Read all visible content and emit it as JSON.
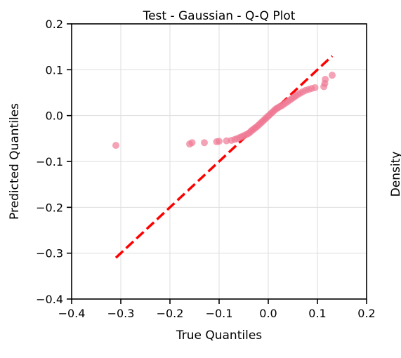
{
  "chart_data": {
    "type": "scatter",
    "title": "Test - Gaussian - Q-Q Plot",
    "xlabel": "True Quantiles",
    "ylabel": "Predicted Quantiles",
    "side_label": "Density",
    "xlim": [
      -0.4,
      0.2
    ],
    "ylim": [
      -0.4,
      0.2
    ],
    "xticks": [
      "−0.4",
      "−0.3",
      "−0.2",
      "−0.1",
      "0.0",
      "0.1",
      "0.2"
    ],
    "yticks": [
      "−0.4",
      "−0.3",
      "−0.2",
      "−0.1",
      "0.0",
      "0.1",
      "0.2"
    ],
    "xtick_values": [
      -0.4,
      -0.3,
      -0.2,
      -0.1,
      0.0,
      0.1,
      0.2
    ],
    "ytick_values": [
      -0.4,
      -0.3,
      -0.2,
      -0.1,
      0.0,
      0.1,
      0.2
    ],
    "grid": true,
    "point_color": "#f07a95",
    "line_color": "#ff0000",
    "reference_line": {
      "x": [
        -0.31,
        0.13
      ],
      "y": [
        -0.31,
        0.13
      ],
      "style": "dashed"
    },
    "points": [
      {
        "x": -0.31,
        "y": -0.065
      },
      {
        "x": -0.16,
        "y": -0.062
      },
      {
        "x": -0.155,
        "y": -0.059
      },
      {
        "x": -0.13,
        "y": -0.059
      },
      {
        "x": -0.105,
        "y": -0.057
      },
      {
        "x": -0.1,
        "y": -0.056
      },
      {
        "x": -0.085,
        "y": -0.055
      },
      {
        "x": -0.075,
        "y": -0.054
      },
      {
        "x": -0.068,
        "y": -0.052
      },
      {
        "x": -0.063,
        "y": -0.05
      },
      {
        "x": -0.058,
        "y": -0.048
      },
      {
        "x": -0.054,
        "y": -0.046
      },
      {
        "x": -0.05,
        "y": -0.044
      },
      {
        "x": -0.046,
        "y": -0.042
      },
      {
        "x": -0.042,
        "y": -0.04
      },
      {
        "x": -0.039,
        "y": -0.038
      },
      {
        "x": -0.036,
        "y": -0.035
      },
      {
        "x": -0.033,
        "y": -0.032
      },
      {
        "x": -0.03,
        "y": -0.03
      },
      {
        "x": -0.027,
        "y": -0.027
      },
      {
        "x": -0.024,
        "y": -0.025
      },
      {
        "x": -0.021,
        "y": -0.022
      },
      {
        "x": -0.018,
        "y": -0.019
      },
      {
        "x": -0.015,
        "y": -0.016
      },
      {
        "x": -0.012,
        "y": -0.013
      },
      {
        "x": -0.009,
        "y": -0.01
      },
      {
        "x": -0.006,
        "y": -0.007
      },
      {
        "x": -0.003,
        "y": -0.004
      },
      {
        "x": 0.0,
        "y": -0.001
      },
      {
        "x": 0.003,
        "y": 0.002
      },
      {
        "x": 0.006,
        "y": 0.005
      },
      {
        "x": 0.009,
        "y": 0.008
      },
      {
        "x": 0.012,
        "y": 0.011
      },
      {
        "x": 0.015,
        "y": 0.014
      },
      {
        "x": 0.018,
        "y": 0.016
      },
      {
        "x": 0.021,
        "y": 0.018
      },
      {
        "x": 0.024,
        "y": 0.02
      },
      {
        "x": 0.028,
        "y": 0.022
      },
      {
        "x": 0.032,
        "y": 0.025
      },
      {
        "x": 0.036,
        "y": 0.028
      },
      {
        "x": 0.04,
        "y": 0.031
      },
      {
        "x": 0.044,
        "y": 0.034
      },
      {
        "x": 0.048,
        "y": 0.037
      },
      {
        "x": 0.052,
        "y": 0.04
      },
      {
        "x": 0.056,
        "y": 0.043
      },
      {
        "x": 0.06,
        "y": 0.046
      },
      {
        "x": 0.065,
        "y": 0.049
      },
      {
        "x": 0.07,
        "y": 0.052
      },
      {
        "x": 0.076,
        "y": 0.055
      },
      {
        "x": 0.082,
        "y": 0.057
      },
      {
        "x": 0.088,
        "y": 0.059
      },
      {
        "x": 0.095,
        "y": 0.061
      },
      {
        "x": 0.113,
        "y": 0.063
      },
      {
        "x": 0.115,
        "y": 0.07
      },
      {
        "x": 0.116,
        "y": 0.079
      },
      {
        "x": 0.13,
        "y": 0.088
      }
    ]
  }
}
